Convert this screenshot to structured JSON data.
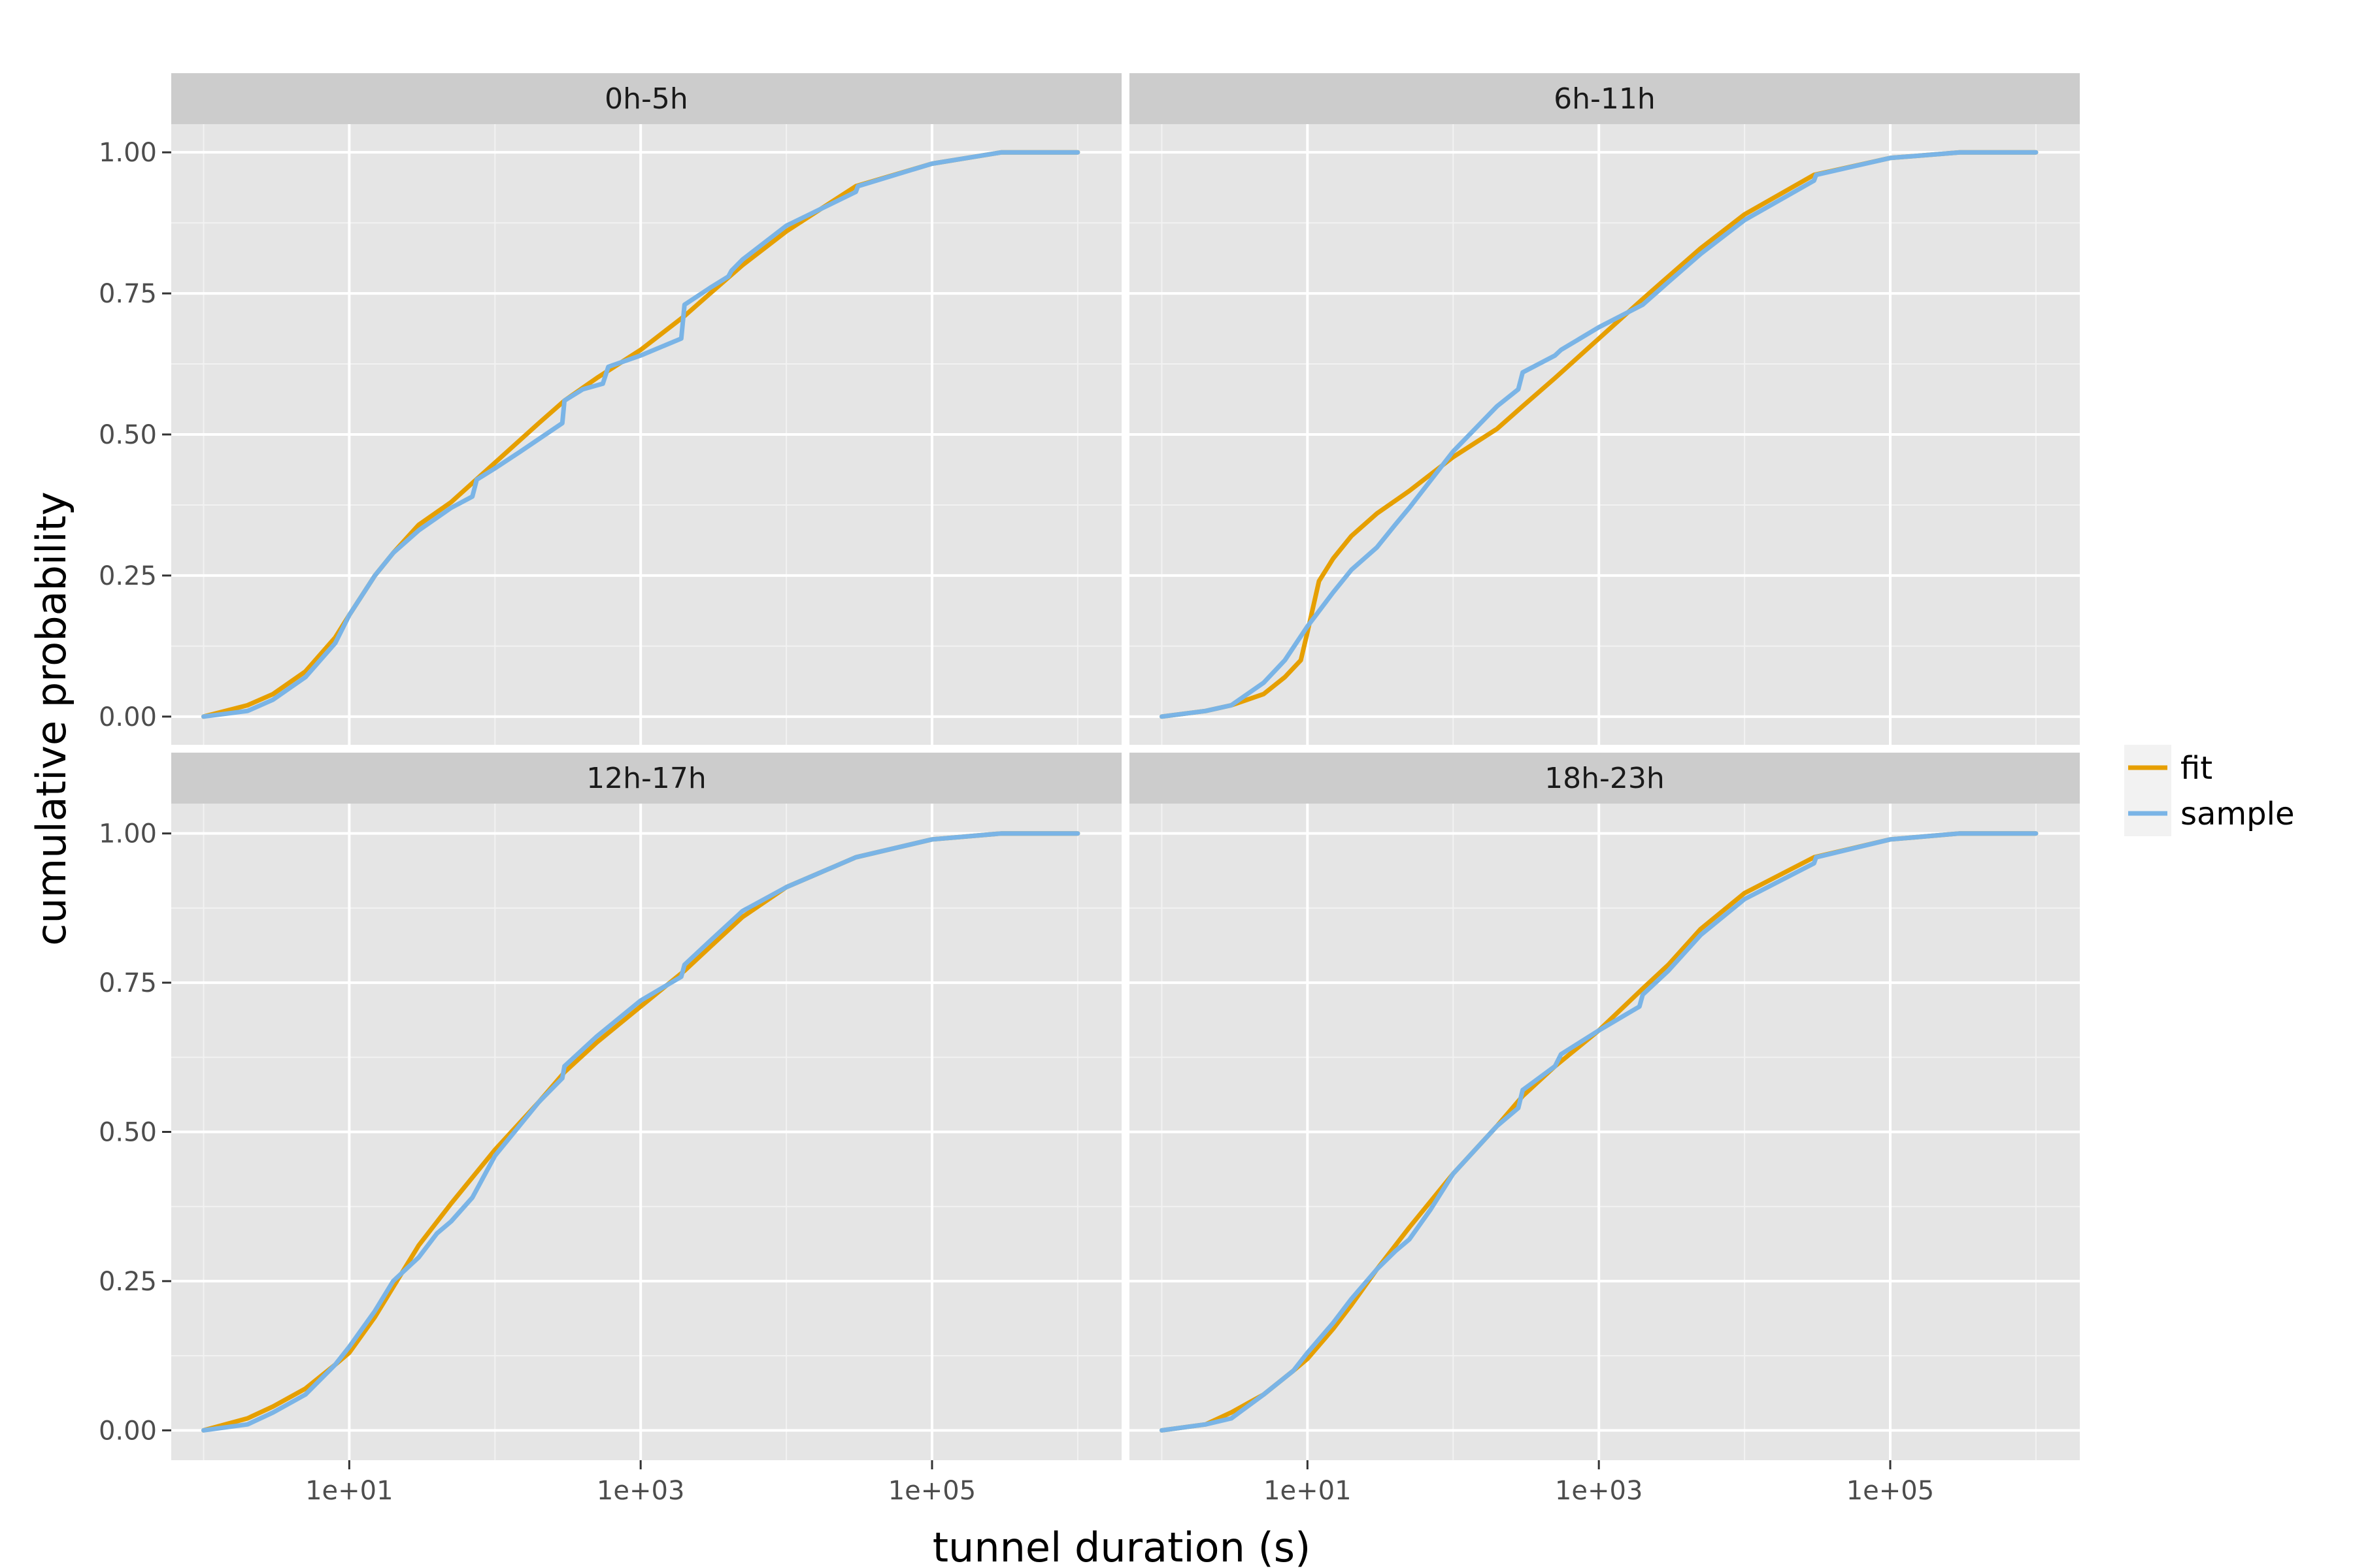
{
  "chart_data": {
    "type": "line",
    "x_scale": "log10",
    "xlabel": "tunnel duration (s)",
    "ylabel": "cumulative probability",
    "xlim": [
      0.6,
      2000000
    ],
    "ylim": [
      -0.05,
      1.05
    ],
    "x_ticks": [
      {
        "value": 10,
        "label": "1e+01"
      },
      {
        "value": 1000,
        "label": "1e+03"
      },
      {
        "value": 100000,
        "label": "1e+05"
      }
    ],
    "y_ticks": [
      {
        "value": 0,
        "label": "0.00"
      },
      {
        "value": 0.25,
        "label": "0.25"
      },
      {
        "value": 0.5,
        "label": "0.50"
      },
      {
        "value": 0.75,
        "label": "0.75"
      },
      {
        "value": 1,
        "label": "1.00"
      }
    ],
    "grid": true,
    "legend_position": "right",
    "legend": [
      {
        "name": "fit",
        "color": "#E69F00"
      },
      {
        "name": "sample",
        "color": "#7AB4E6"
      }
    ],
    "facets": [
      {
        "label": "0h-5h",
        "series": [
          {
            "name": "fit",
            "x": [
              1,
              2,
              3,
              5,
              8,
              10,
              15,
              20,
              30,
              50,
              100,
              200,
              300,
              500,
              1000,
              2000,
              3000,
              5000,
              10000,
              30000,
              100000,
              300000,
              1000000
            ],
            "y": [
              0.0,
              0.02,
              0.04,
              0.08,
              0.14,
              0.18,
              0.25,
              0.29,
              0.34,
              0.38,
              0.45,
              0.52,
              0.56,
              0.6,
              0.65,
              0.71,
              0.75,
              0.8,
              0.86,
              0.94,
              0.98,
              1.0,
              1.0
            ]
          },
          {
            "name": "sample",
            "x": [
              1,
              2,
              3,
              5,
              8,
              10,
              15,
              20,
              30,
              50,
              70,
              75,
              100,
              150,
              290,
              300,
              400,
              550,
              600,
              1000,
              1900,
              2000,
              3000,
              4000,
              4200,
              5000,
              10000,
              30000,
              31000,
              100000,
              300000,
              1000000
            ],
            "y": [
              0.0,
              0.01,
              0.03,
              0.07,
              0.13,
              0.18,
              0.25,
              0.29,
              0.33,
              0.37,
              0.39,
              0.42,
              0.44,
              0.47,
              0.52,
              0.56,
              0.58,
              0.59,
              0.62,
              0.64,
              0.67,
              0.73,
              0.76,
              0.78,
              0.79,
              0.81,
              0.87,
              0.93,
              0.94,
              0.98,
              1.0,
              1.0
            ]
          }
        ]
      },
      {
        "label": "6h-11h",
        "series": [
          {
            "name": "fit",
            "x": [
              1,
              2,
              3,
              5,
              7,
              9,
              10,
              12,
              15,
              20,
              30,
              50,
              100,
              200,
              300,
              500,
              1000,
              2000,
              3000,
              5000,
              10000,
              30000,
              100000,
              300000,
              1000000
            ],
            "y": [
              0.0,
              0.01,
              0.02,
              0.04,
              0.07,
              0.1,
              0.15,
              0.24,
              0.28,
              0.32,
              0.36,
              0.4,
              0.46,
              0.51,
              0.55,
              0.6,
              0.67,
              0.74,
              0.78,
              0.83,
              0.89,
              0.96,
              0.99,
              1.0,
              1.0
            ]
          },
          {
            "name": "sample",
            "x": [
              1,
              2,
              3,
              5,
              7,
              10,
              15,
              20,
              30,
              40,
              50,
              100,
              200,
              280,
              300,
              500,
              550,
              1000,
              2000,
              3000,
              5000,
              10000,
              30000,
              31000,
              100000,
              300000,
              1000000
            ],
            "y": [
              0.0,
              0.01,
              0.02,
              0.06,
              0.1,
              0.16,
              0.22,
              0.26,
              0.3,
              0.34,
              0.37,
              0.47,
              0.55,
              0.58,
              0.61,
              0.64,
              0.65,
              0.69,
              0.73,
              0.77,
              0.82,
              0.88,
              0.95,
              0.96,
              0.99,
              1.0,
              1.0
            ]
          }
        ]
      },
      {
        "label": "12h-17h",
        "series": [
          {
            "name": "fit",
            "x": [
              1,
              2,
              3,
              5,
              8,
              10,
              15,
              20,
              30,
              50,
              100,
              200,
              300,
              500,
              1000,
              2000,
              3000,
              5000,
              10000,
              30000,
              100000,
              300000,
              1000000
            ],
            "y": [
              0.0,
              0.02,
              0.04,
              0.07,
              0.11,
              0.13,
              0.19,
              0.24,
              0.31,
              0.38,
              0.47,
              0.55,
              0.6,
              0.65,
              0.71,
              0.77,
              0.81,
              0.86,
              0.91,
              0.96,
              0.99,
              1.0,
              1.0
            ]
          },
          {
            "name": "sample",
            "x": [
              1,
              2,
              3,
              5,
              8,
              10,
              15,
              20,
              30,
              40,
              50,
              70,
              100,
              200,
              290,
              300,
              500,
              1000,
              1900,
              2000,
              3000,
              5000,
              10000,
              30000,
              100000,
              300000,
              1000000
            ],
            "y": [
              0.0,
              0.01,
              0.03,
              0.06,
              0.11,
              0.14,
              0.2,
              0.25,
              0.29,
              0.33,
              0.35,
              0.39,
              0.46,
              0.55,
              0.59,
              0.61,
              0.66,
              0.72,
              0.76,
              0.78,
              0.82,
              0.87,
              0.91,
              0.96,
              0.99,
              1.0,
              1.0
            ]
          }
        ]
      },
      {
        "label": "18h-23h",
        "series": [
          {
            "name": "fit",
            "x": [
              1,
              2,
              3,
              5,
              8,
              10,
              15,
              20,
              30,
              50,
              100,
              200,
              300,
              500,
              1000,
              2000,
              3000,
              5000,
              10000,
              30000,
              100000,
              300000,
              1000000
            ],
            "y": [
              0.0,
              0.01,
              0.03,
              0.06,
              0.1,
              0.12,
              0.17,
              0.21,
              0.27,
              0.34,
              0.43,
              0.51,
              0.56,
              0.61,
              0.67,
              0.74,
              0.78,
              0.84,
              0.9,
              0.96,
              0.99,
              1.0,
              1.0
            ]
          },
          {
            "name": "sample",
            "x": [
              1,
              2,
              3,
              5,
              8,
              10,
              15,
              20,
              30,
              40,
              50,
              70,
              100,
              200,
              280,
              300,
              500,
              550,
              1000,
              1900,
              2000,
              3000,
              5000,
              10000,
              30000,
              31000,
              100000,
              300000,
              1000000
            ],
            "y": [
              0.0,
              0.01,
              0.02,
              0.06,
              0.1,
              0.13,
              0.18,
              0.22,
              0.27,
              0.3,
              0.32,
              0.37,
              0.43,
              0.51,
              0.54,
              0.57,
              0.61,
              0.63,
              0.67,
              0.71,
              0.73,
              0.77,
              0.83,
              0.89,
              0.95,
              0.96,
              0.99,
              1.0,
              1.0
            ]
          }
        ]
      }
    ]
  }
}
